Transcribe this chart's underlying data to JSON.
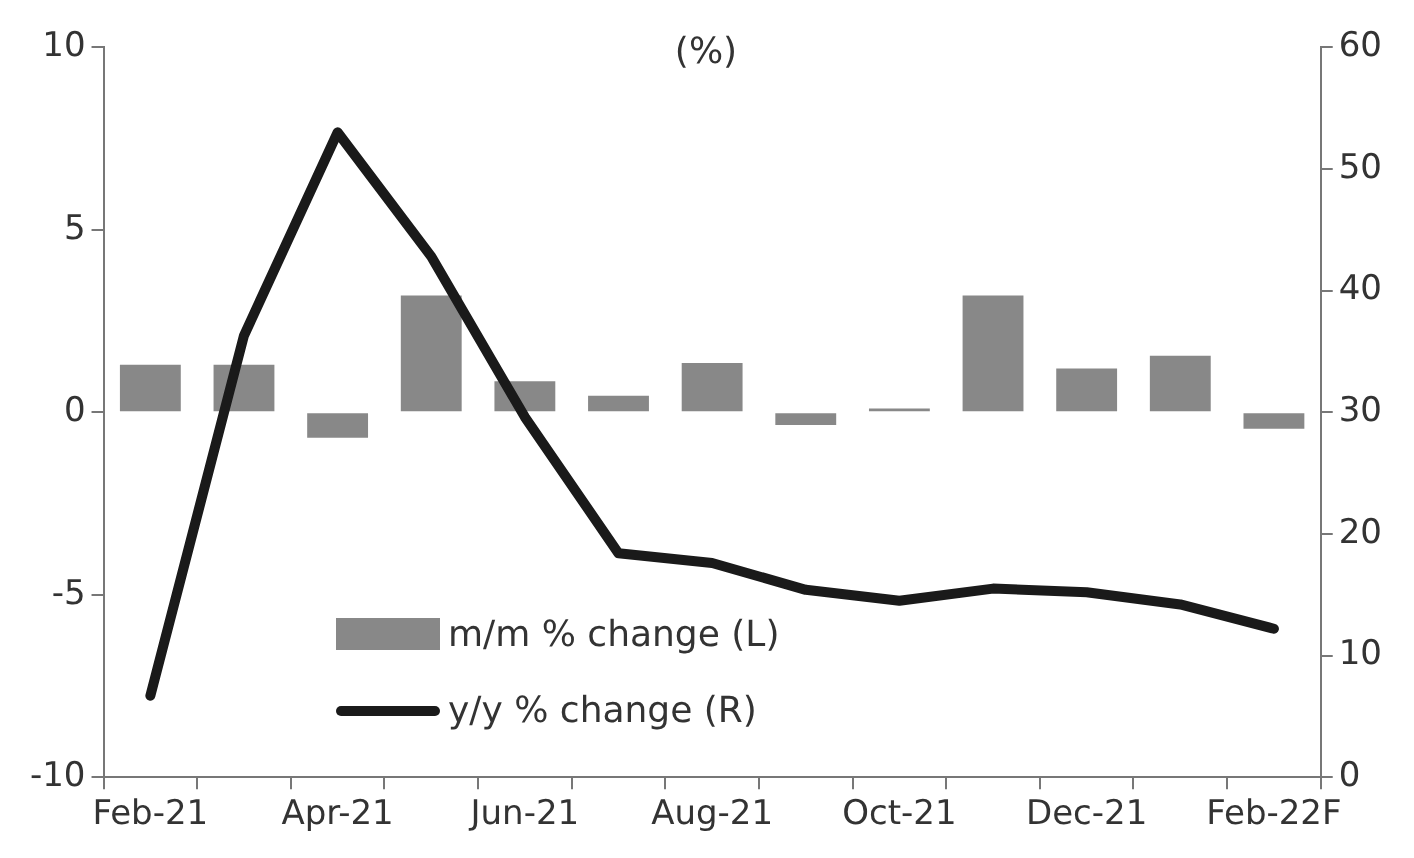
{
  "chart_data": {
    "type": "bar",
    "title": "(%)",
    "categories": [
      "Feb-21",
      null,
      "Apr-21",
      null,
      "Jun-21",
      null,
      "Aug-21",
      null,
      "Oct-21",
      null,
      "Dec-21",
      null,
      "Feb-22F"
    ],
    "series": [
      {
        "name": "m/m % change (L)",
        "color": "#888888",
        "values": [
          1.3,
          1.3,
          -0.7,
          3.2,
          0.85,
          0.45,
          1.35,
          -0.35,
          0.1,
          3.2,
          1.2,
          1.55,
          -0.45
        ]
      },
      {
        "name": "y/y % change (R)",
        "type": "line",
        "axis": "y2",
        "color": "#1a1a1a",
        "values": [
          6.7,
          36.3,
          53,
          42.8,
          29.6,
          18.4,
          17.6,
          15.4,
          14.5,
          15.5,
          15.2,
          14.2,
          12.2
        ]
      }
    ],
    "ylim": [
      -10,
      10
    ],
    "yticks": [
      -10,
      -5,
      0,
      5,
      10
    ],
    "y2lim": [
      0,
      60
    ],
    "y2ticks": [
      0,
      10,
      20,
      30,
      40,
      50,
      60
    ],
    "legend": "bottom",
    "grid": false,
    "marker": "none",
    "line_style": "solid"
  }
}
